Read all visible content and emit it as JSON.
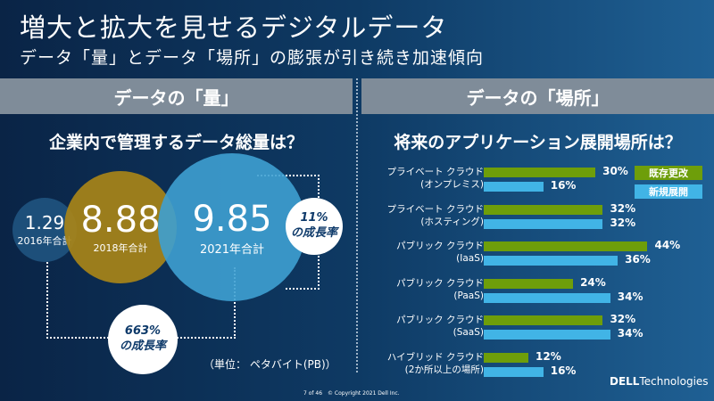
{
  "title": "増大と拡大を見せるデジタルデータ",
  "subtitle": "データ「量」とデータ「場所」の膨張が引き続き加速傾向",
  "left": {
    "header": "データの「量」",
    "question": "企業内で管理するデータ総量は？",
    "circles": [
      {
        "value": "1.29",
        "label": "2016年合計"
      },
      {
        "value": "8.88",
        "label": "2018年合計"
      },
      {
        "value": "9.85",
        "label": "2021年合計"
      }
    ],
    "growth": [
      {
        "value": "11%",
        "label": "の成長率"
      },
      {
        "value": "663%",
        "label": "の成長率"
      }
    ],
    "unit": "（単位： ペタバイト(PB)）"
  },
  "right": {
    "header": "データの「場所」",
    "question": "将来のアプリケーション展開場所は？"
  },
  "chart_data": {
    "type": "bar",
    "orientation": "horizontal",
    "categories": [
      [
        "プライベート クラウド",
        "(オンプレミス)"
      ],
      [
        "プライベート クラウド",
        "(ホスティング)"
      ],
      [
        "パブリック クラウド",
        "(IaaS)"
      ],
      [
        "パブリック クラウド",
        "(PaaS)"
      ],
      [
        "パブリック クラウド",
        "(SaaS)"
      ],
      [
        "ハイブリッド クラウド",
        "(2か所以上の場所)"
      ]
    ],
    "series": [
      {
        "name": "既存更改",
        "color": "#6e9e0a",
        "values": [
          30,
          32,
          44,
          24,
          32,
          12
        ]
      },
      {
        "name": "新規展開",
        "color": "#41b4e6",
        "values": [
          16,
          32,
          36,
          34,
          34,
          16
        ]
      }
    ],
    "unit": "%"
  },
  "footer": {
    "page": "7 of 46",
    "copyright": "© Copyright 2021 Dell Inc.",
    "logo": "DELLTechnologies"
  }
}
